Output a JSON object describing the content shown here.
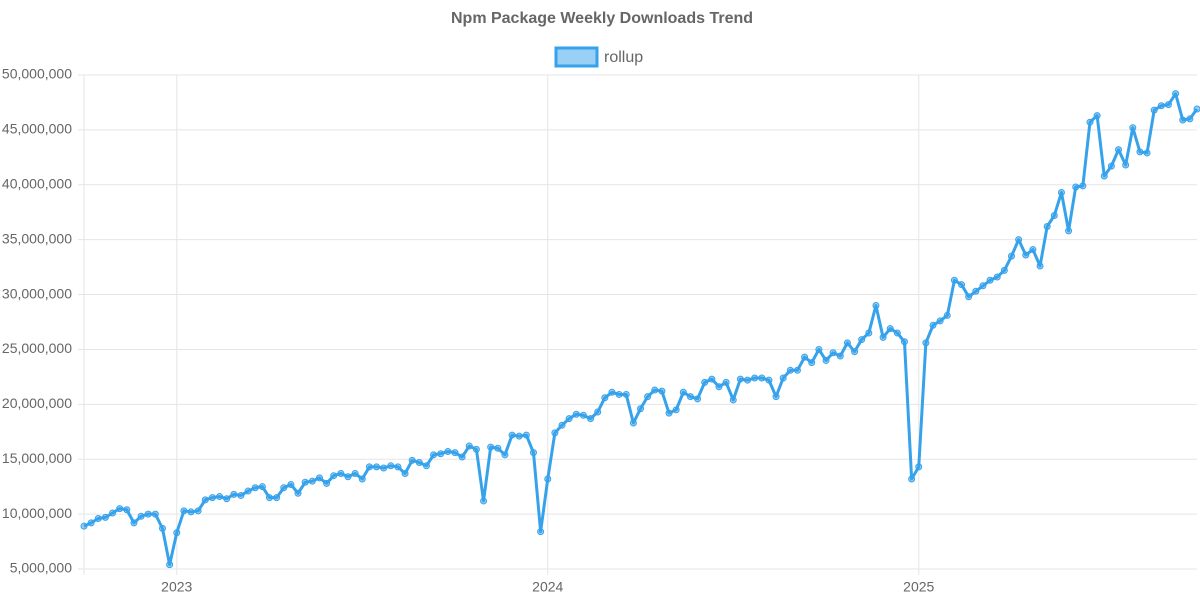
{
  "chart_data": {
    "type": "line",
    "title": "Npm Package Weekly Downloads Trend",
    "categories": [
      null,
      null,
      null,
      null,
      null,
      null,
      null,
      null,
      null,
      null,
      null,
      null,
      null,
      "2023",
      null,
      null,
      null,
      null,
      null,
      null,
      null,
      null,
      null,
      null,
      null,
      null,
      null,
      null,
      null,
      null,
      null,
      null,
      null,
      null,
      null,
      null,
      null,
      null,
      null,
      null,
      null,
      null,
      null,
      null,
      null,
      null,
      null,
      null,
      null,
      null,
      null,
      null,
      null,
      null,
      null,
      null,
      null,
      null,
      null,
      null,
      null,
      null,
      null,
      null,
      null,
      "2024",
      null,
      null,
      null,
      null,
      null,
      null,
      null,
      null,
      null,
      null,
      null,
      null,
      null,
      null,
      null,
      null,
      null,
      null,
      null,
      null,
      null,
      null,
      null,
      null,
      null,
      null,
      null,
      null,
      null,
      null,
      null,
      null,
      null,
      null,
      null,
      null,
      null,
      null,
      null,
      null,
      null,
      null,
      null,
      null,
      null,
      null,
      null,
      null,
      null,
      null,
      null,
      "2025",
      null,
      null,
      null,
      null,
      null,
      null,
      null,
      null,
      null,
      null,
      null,
      null,
      null,
      null,
      null,
      null,
      null,
      null,
      null,
      null,
      null,
      null,
      null,
      null,
      null,
      null,
      null,
      null,
      null,
      null,
      null,
      null,
      null,
      null,
      null,
      null,
      null,
      null,
      null
    ],
    "series": [
      {
        "name": "rollup",
        "color": "#36a2eb",
        "values": [
          8900000,
          9200000,
          9600000,
          9700000,
          10100000,
          10500000,
          10400000,
          9200000,
          9800000,
          10000000,
          10000000,
          8700000,
          5400000,
          8300000,
          10300000,
          10200000,
          10300000,
          11300000,
          11500000,
          11600000,
          11400000,
          11800000,
          11700000,
          12100000,
          12400000,
          12500000,
          11500000,
          11500000,
          12400000,
          12700000,
          11900000,
          12900000,
          13000000,
          13300000,
          12800000,
          13500000,
          13700000,
          13400000,
          13700000,
          13200000,
          14300000,
          14300000,
          14200000,
          14400000,
          14300000,
          13700000,
          14900000,
          14700000,
          14400000,
          15400000,
          15500000,
          15700000,
          15600000,
          15200000,
          16200000,
          15900000,
          11200000,
          16100000,
          16000000,
          15400000,
          17200000,
          17100000,
          17200000,
          15600000,
          8400000,
          13200000,
          17400000,
          18100000,
          18700000,
          19100000,
          19000000,
          18700000,
          19300000,
          20600000,
          21100000,
          20900000,
          20900000,
          18300000,
          19600000,
          20700000,
          21300000,
          21200000,
          19200000,
          19500000,
          21100000,
          20700000,
          20500000,
          22000000,
          22300000,
          21600000,
          22000000,
          20400000,
          22300000,
          22200000,
          22400000,
          22400000,
          22200000,
          20700000,
          22400000,
          23100000,
          23100000,
          24300000,
          23800000,
          25000000,
          24000000,
          24700000,
          24400000,
          25600000,
          24800000,
          25900000,
          26500000,
          29000000,
          26100000,
          26900000,
          26500000,
          25700000,
          13200000,
          14300000,
          25600000,
          27200000,
          27600000,
          28100000,
          31300000,
          30900000,
          29800000,
          30300000,
          30800000,
          31300000,
          31600000,
          32200000,
          33500000,
          35000000,
          33600000,
          34100000,
          32600000,
          36200000,
          37200000,
          39300000,
          35800000,
          39800000,
          39900000,
          45700000,
          46300000,
          40800000,
          41700000,
          43200000,
          41800000,
          45200000,
          43000000,
          42900000,
          46800000,
          47200000,
          47300000,
          48300000,
          45900000,
          46000000,
          46900000
        ]
      }
    ],
    "ylim": [
      5000000,
      50000000
    ],
    "yticks": [
      {
        "value": 5000000,
        "label": "5,000,000"
      },
      {
        "value": 10000000,
        "label": "10,000,000"
      },
      {
        "value": 15000000,
        "label": "15,000,000"
      },
      {
        "value": 20000000,
        "label": "20,000,000"
      },
      {
        "value": 25000000,
        "label": "25,000,000"
      },
      {
        "value": 30000000,
        "label": "30,000,000"
      },
      {
        "value": 35000000,
        "label": "35,000,000"
      },
      {
        "value": 40000000,
        "label": "40,000,000"
      },
      {
        "value": 45000000,
        "label": "45,000,000"
      },
      {
        "value": 50000000,
        "label": "50,000,000"
      }
    ],
    "grid": true,
    "legend": "top"
  }
}
